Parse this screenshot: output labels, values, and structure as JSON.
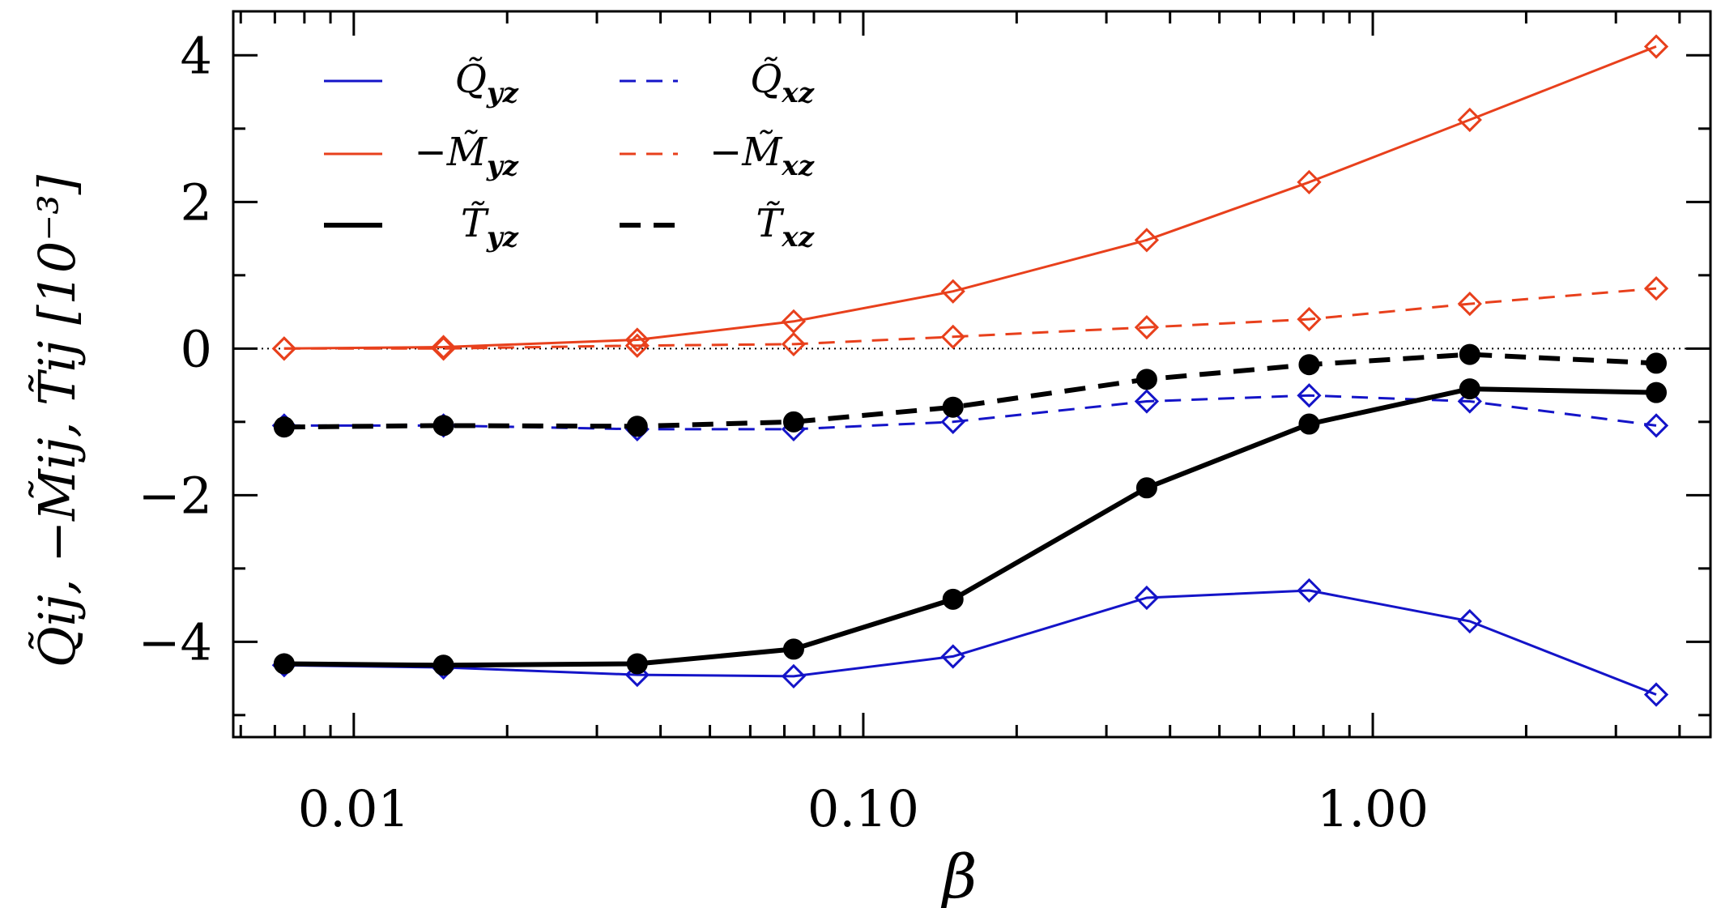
{
  "chart_data": {
    "type": "line",
    "xscale": "log",
    "xlim": [
      0.0058,
      4.6
    ],
    "ylim": [
      -5.3,
      4.6
    ],
    "xlabel": "β",
    "ylabel": "Q̃ij,  −M̃ij,  T̃ij  [10⁻³]",
    "x_tick_labels": [
      "0.01",
      "0.10",
      "1.00"
    ],
    "x_ticks": [
      0.01,
      0.1,
      1.0
    ],
    "y_tick_labels": [
      "−4",
      "−2",
      "0",
      "2",
      "4"
    ],
    "y_ticks": [
      -4,
      -2,
      0,
      2,
      4
    ],
    "zero_line": true,
    "x": [
      0.0073,
      0.015,
      0.036,
      0.073,
      0.15,
      0.36,
      0.75,
      1.55,
      3.6
    ],
    "series": [
      {
        "id": "q_yz",
        "name": "Q̃yz",
        "color": "#1414c8",
        "style": "solid",
        "width": 3,
        "marker": "diamond-open",
        "values": [
          -4.32,
          -4.35,
          -4.45,
          -4.47,
          -4.2,
          -3.4,
          -3.3,
          -3.72,
          -4.72
        ]
      },
      {
        "id": "m_yz",
        "name": "−M̃yz",
        "color": "#e8401c",
        "style": "solid",
        "width": 3,
        "marker": "diamond-open",
        "values": [
          0.0,
          0.02,
          0.12,
          0.37,
          0.78,
          1.48,
          2.27,
          3.12,
          4.12
        ]
      },
      {
        "id": "t_yz",
        "name": "T̃yz",
        "color": "#000000",
        "style": "solid",
        "width": 6,
        "marker": "circle-filled",
        "values": [
          -4.3,
          -4.32,
          -4.3,
          -4.1,
          -3.42,
          -1.9,
          -1.03,
          -0.55,
          -0.6
        ]
      },
      {
        "id": "q_xz",
        "name": "Q̃xz",
        "color": "#1414c8",
        "style": "dashed",
        "width": 3,
        "marker": "diamond-open",
        "values": [
          -1.05,
          -1.05,
          -1.1,
          -1.1,
          -1.0,
          -0.72,
          -0.64,
          -0.72,
          -1.05
        ]
      },
      {
        "id": "m_xz",
        "name": "−M̃xz",
        "color": "#e8401c",
        "style": "dashed",
        "width": 3,
        "marker": "diamond-open",
        "values": [
          0.0,
          0.0,
          0.04,
          0.06,
          0.16,
          0.29,
          0.4,
          0.61,
          0.82
        ]
      },
      {
        "id": "t_xz",
        "name": "T̃xz",
        "color": "#000000",
        "style": "dashed",
        "width": 6,
        "marker": "circle-filled",
        "values": [
          -1.07,
          -1.05,
          -1.06,
          -1.0,
          -0.8,
          -0.42,
          -0.22,
          -0.08,
          -0.2
        ]
      }
    ],
    "legend": {
      "placement": "top-left",
      "entries": [
        {
          "series": "q_yz",
          "sym": "Q̃",
          "sub": "yz",
          "prefix": ""
        },
        {
          "series": "q_xz",
          "sym": "Q̃",
          "sub": "xz",
          "prefix": ""
        },
        {
          "series": "m_yz",
          "sym": "M̃",
          "sub": "yz",
          "prefix": "−"
        },
        {
          "series": "m_xz",
          "sym": "M̃",
          "sub": "xz",
          "prefix": "−"
        },
        {
          "series": "t_yz",
          "sym": "T̃",
          "sub": "yz",
          "prefix": ""
        },
        {
          "series": "t_xz",
          "sym": "T̃",
          "sub": "xz",
          "prefix": ""
        }
      ]
    }
  }
}
